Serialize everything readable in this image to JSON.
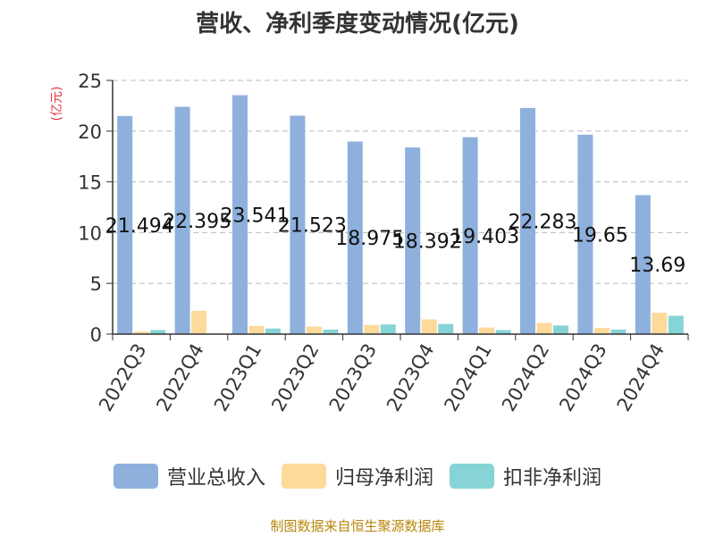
{
  "chart_data": {
    "type": "bar",
    "title": "营收、净利季度变动情况(亿元)",
    "ylabel": "(亿元)",
    "ylim": [
      0,
      25
    ],
    "yticks": [
      0,
      5,
      10,
      15,
      20,
      25
    ],
    "grid": true,
    "legend_position": "bottom",
    "categories": [
      "2022Q3",
      "2022Q4",
      "2023Q1",
      "2023Q2",
      "2023Q3",
      "2023Q4",
      "2024Q1",
      "2024Q2",
      "2024Q3",
      "2024Q4"
    ],
    "series": [
      {
        "name": "营业总收入",
        "color": "#8eb0dc",
        "values": [
          21.494,
          22.395,
          23.541,
          21.523,
          18.975,
          18.392,
          19.403,
          22.283,
          19.65,
          13.69
        ],
        "labels": [
          "21.494",
          "22.395",
          "23.541",
          "21.523",
          "18.975",
          "18.392",
          "19.403",
          "22.283",
          "19.65",
          "13.69"
        ]
      },
      {
        "name": "归母净利润",
        "color": "#fdd99a",
        "values": [
          0.25,
          2.3,
          0.8,
          0.75,
          0.9,
          1.45,
          0.65,
          1.1,
          0.6,
          2.1
        ]
      },
      {
        "name": "扣非净利润",
        "color": "#86d4d6",
        "values": [
          0.4,
          0.0,
          0.55,
          0.45,
          0.95,
          1.0,
          0.4,
          0.85,
          0.45,
          1.8
        ]
      }
    ]
  },
  "source_note": "制图数据来自恒生聚源数据库"
}
